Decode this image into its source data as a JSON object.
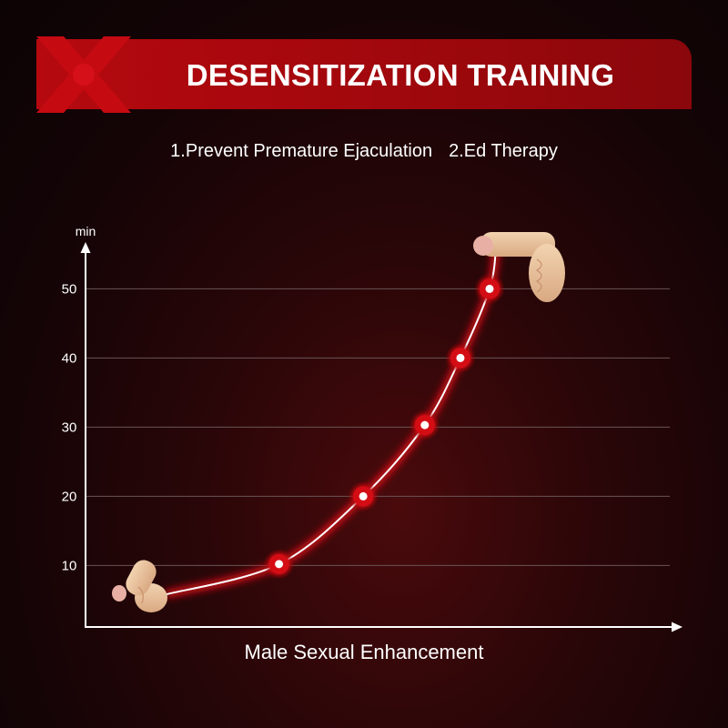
{
  "header": {
    "title": "DESENSITIZATION TRAINING",
    "subtitle_items": [
      "1.Prevent Premature Ejaculation",
      "2.Ed Therapy"
    ]
  },
  "colors": {
    "banner": "#a8080d",
    "glow": "#e0101a",
    "curve": "#ffffff",
    "grid": "#6a5556"
  },
  "chart_data": {
    "type": "line",
    "title": "",
    "xlabel": "Male Sexual Enhancement",
    "ylabel": "min",
    "ylim": [
      0,
      55
    ],
    "yticks": [
      10,
      20,
      30,
      40,
      50
    ],
    "x_ticks_shown": false,
    "grid": true,
    "series": [
      {
        "points": [
          {
            "x": 0.0,
            "y": 5.8
          },
          {
            "x": 0.35,
            "y": 10.2
          },
          {
            "x": 0.61,
            "y": 20.0
          },
          {
            "x": 0.8,
            "y": 30.3
          },
          {
            "x": 0.91,
            "y": 40.0
          },
          {
            "x": 1.0,
            "y": 50.0
          },
          {
            "x": 1.02,
            "y": 56.0
          }
        ],
        "markers": [
          {
            "x": 0.35,
            "y": 10.2
          },
          {
            "x": 0.61,
            "y": 20.0
          },
          {
            "x": 0.8,
            "y": 30.3
          },
          {
            "x": 0.91,
            "y": 40.0
          },
          {
            "x": 1.0,
            "y": 50.0
          }
        ]
      }
    ],
    "icons": [
      "flaccid-icon",
      "erect-icon"
    ]
  }
}
